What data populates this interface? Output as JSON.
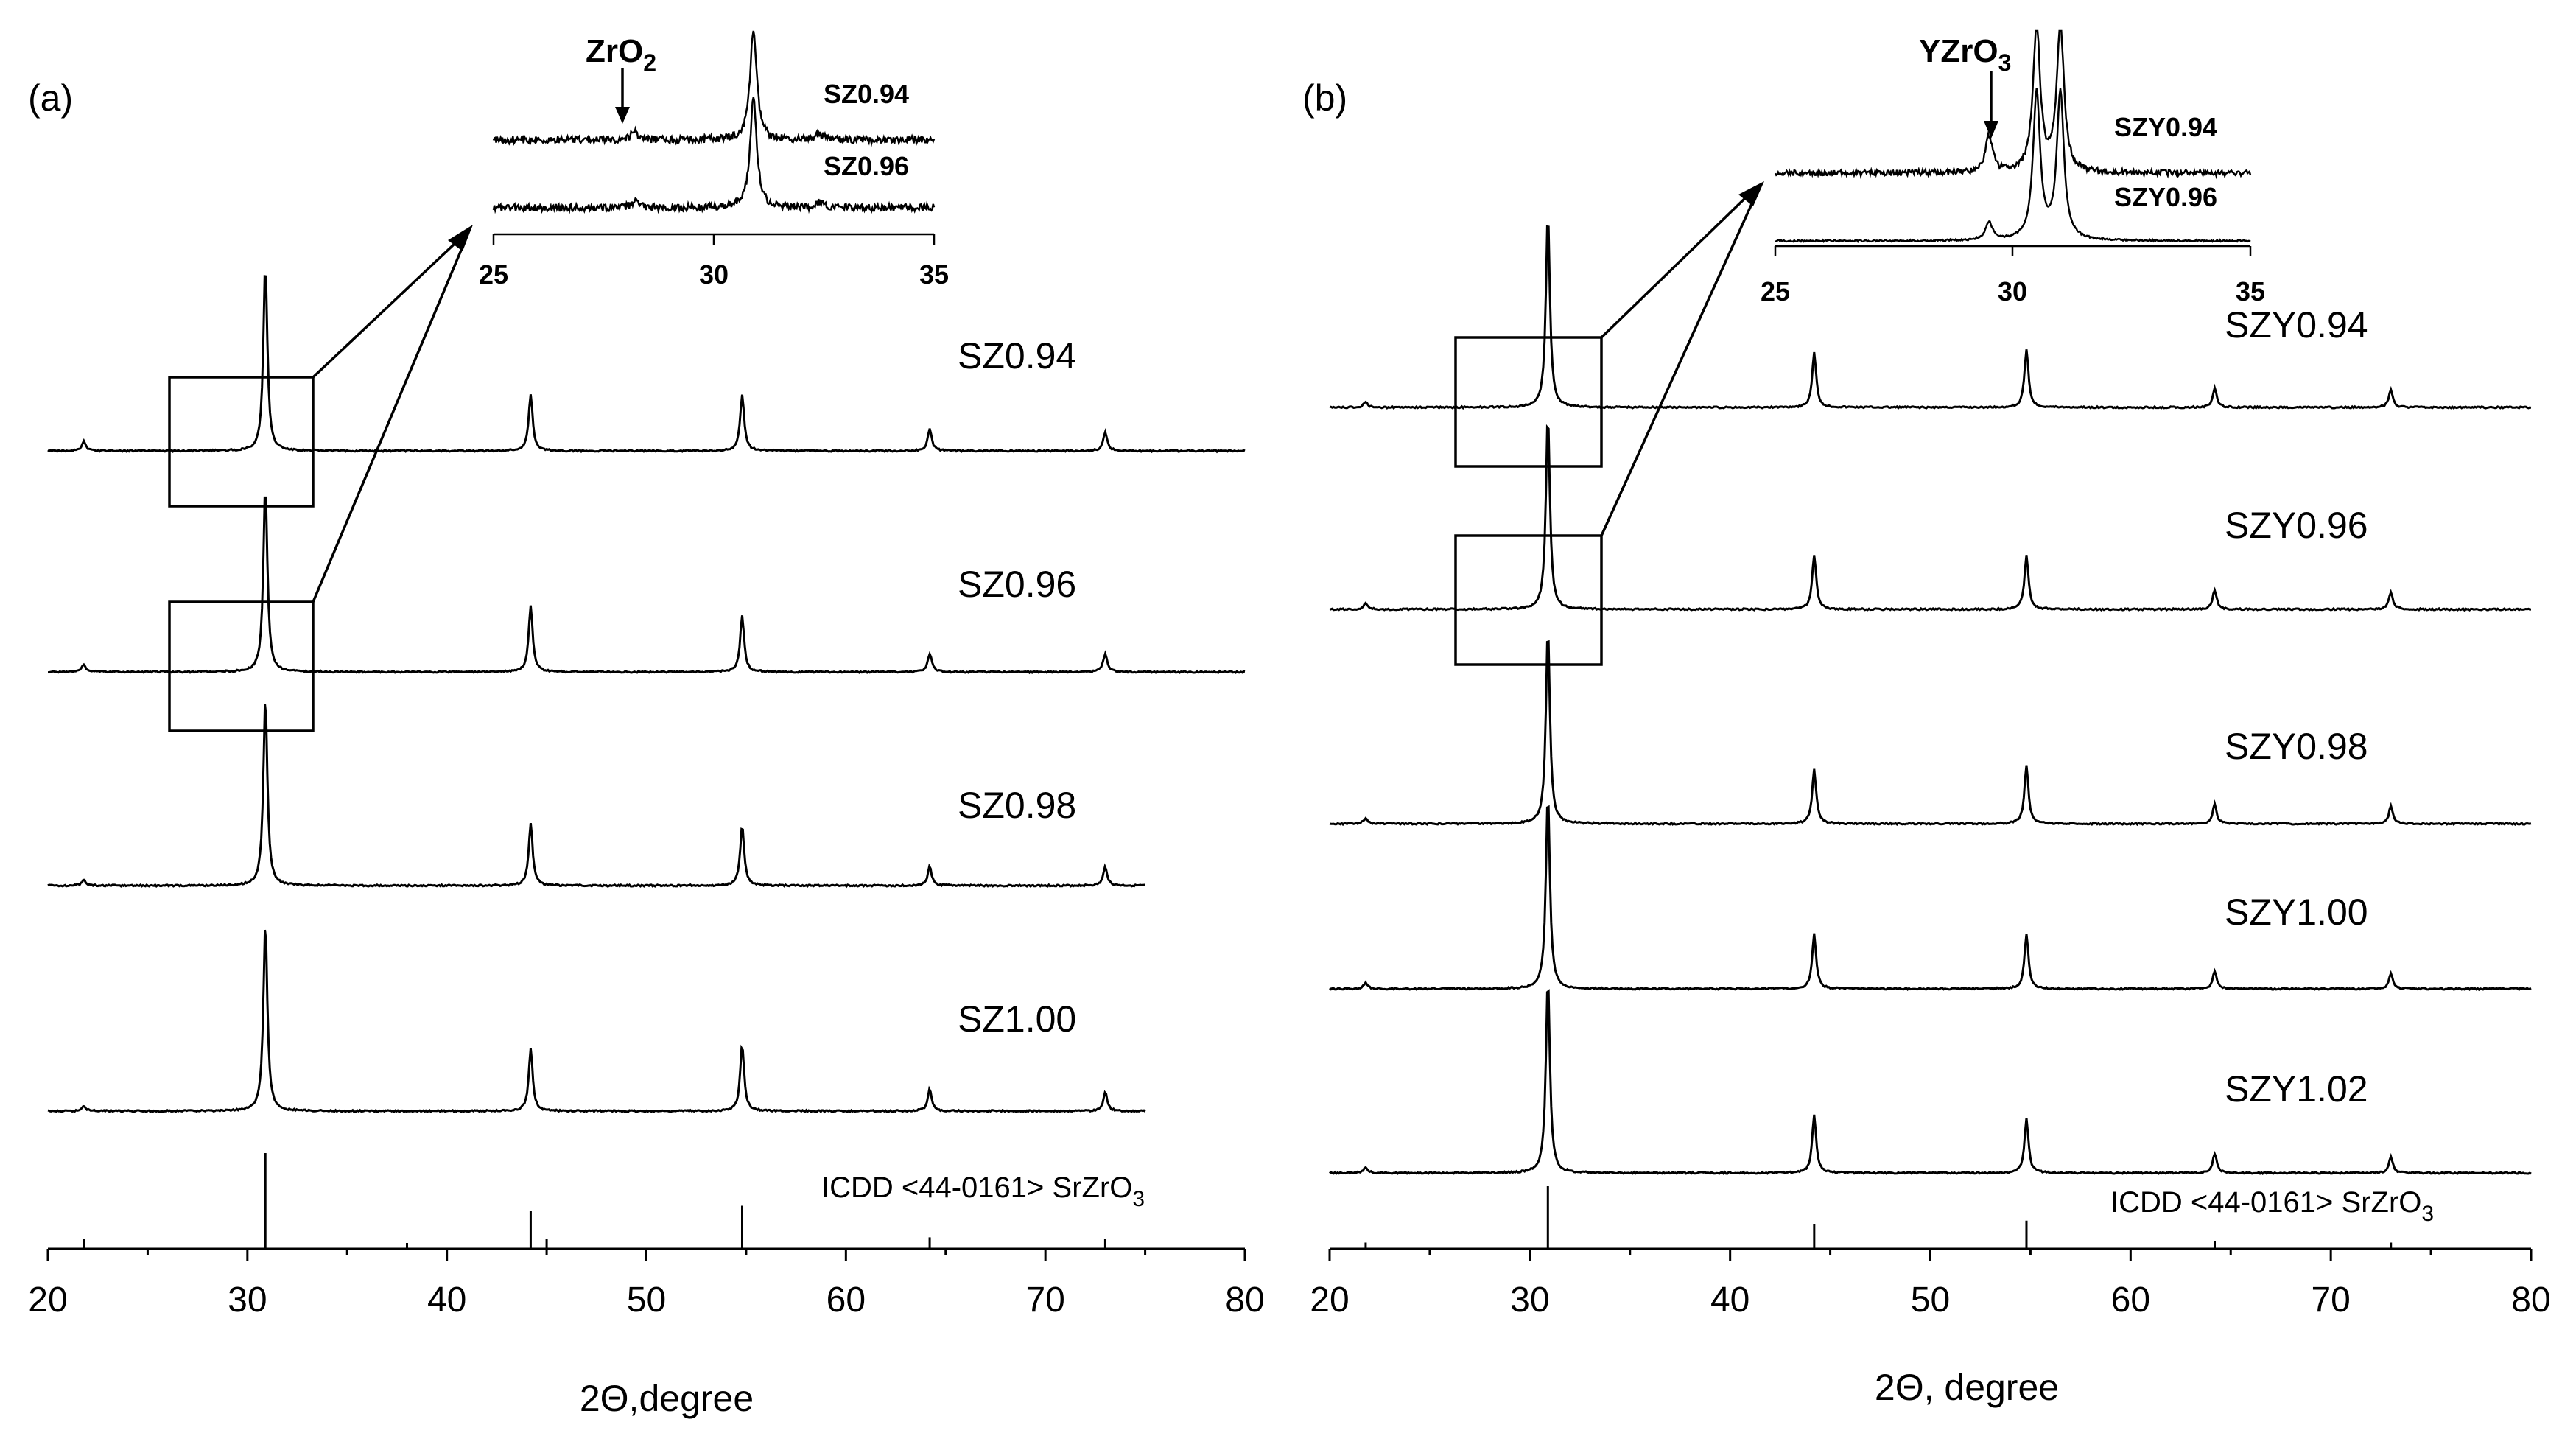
{
  "figure": {
    "panels": [
      {
        "panel_label": "(a)",
        "xlabel": "2Θ,degree",
        "x_ticks": [
          "20",
          "30",
          "40",
          "50",
          "60",
          "70",
          "80"
        ],
        "series_labels": [
          "SZ0.94",
          "SZ0.96",
          "SZ0.98",
          "SZ1.00"
        ],
        "reference_label_main": "ICDD <44-0161> SrZrO",
        "reference_label_sub": "3",
        "inset": {
          "phase_label_main": "ZrO",
          "phase_label_sub": "2",
          "series_labels": [
            "SZ0.94",
            "SZ0.96"
          ],
          "x_ticks": [
            "25",
            "30",
            "35"
          ]
        }
      },
      {
        "panel_label": "(b)",
        "xlabel": "2Θ, degree",
        "x_ticks": [
          "20",
          "30",
          "40",
          "50",
          "60",
          "70",
          "80"
        ],
        "series_labels": [
          "SZY0.94",
          "SZY0.96",
          "SZY0.98",
          "SZY1.00",
          "SZY1.02"
        ],
        "reference_label_main": "ICDD <44-0161> SrZrO",
        "reference_label_sub": "3",
        "inset": {
          "phase_label_main": "YZrO",
          "phase_label_sub": "3",
          "series_labels": [
            "SZY0.94",
            "SZY0.96"
          ],
          "x_ticks": [
            "25",
            "30",
            "35"
          ]
        }
      }
    ]
  },
  "chart_data": [
    {
      "type": "line",
      "title": "(a)",
      "xlabel": "2Θ,degree",
      "ylabel": "",
      "xlim": [
        20,
        80
      ],
      "y_scale": "relative intensity (stacked, offset)",
      "series": [
        {
          "name": "SZ0.94",
          "x_range": [
            20,
            80
          ],
          "peaks": [
            {
              "x": 21.8,
              "h": 0.05
            },
            {
              "x": 30.9,
              "h": 1.0
            },
            {
              "x": 44.2,
              "h": 0.3
            },
            {
              "x": 54.8,
              "h": 0.3
            },
            {
              "x": 64.2,
              "h": 0.12
            },
            {
              "x": 73.0,
              "h": 0.1
            }
          ]
        },
        {
          "name": "SZ0.96",
          "x_range": [
            20,
            80
          ],
          "peaks": [
            {
              "x": 21.8,
              "h": 0.04
            },
            {
              "x": 30.9,
              "h": 1.0
            },
            {
              "x": 44.2,
              "h": 0.35
            },
            {
              "x": 54.8,
              "h": 0.3
            },
            {
              "x": 64.2,
              "h": 0.1
            },
            {
              "x": 73.0,
              "h": 0.1
            }
          ]
        },
        {
          "name": "SZ0.98",
          "x_range": [
            20,
            75
          ],
          "peaks": [
            {
              "x": 21.8,
              "h": 0.03
            },
            {
              "x": 30.9,
              "h": 1.0
            },
            {
              "x": 44.2,
              "h": 0.33
            },
            {
              "x": 54.8,
              "h": 0.32
            },
            {
              "x": 64.2,
              "h": 0.1
            },
            {
              "x": 73.0,
              "h": 0.1
            }
          ]
        },
        {
          "name": "SZ1.00",
          "x_range": [
            20,
            75
          ],
          "peaks": [
            {
              "x": 21.8,
              "h": 0.03
            },
            {
              "x": 30.9,
              "h": 1.0
            },
            {
              "x": 44.2,
              "h": 0.33
            },
            {
              "x": 54.8,
              "h": 0.35
            },
            {
              "x": 64.2,
              "h": 0.12
            },
            {
              "x": 73.0,
              "h": 0.1
            }
          ]
        },
        {
          "name": "ICDD <44-0161> SrZrO3",
          "type": "stick",
          "x": [
            21.8,
            30.9,
            38.0,
            44.2,
            45.0,
            54.8,
            64.2,
            73.0
          ],
          "values": [
            0.1,
            1.0,
            0.04,
            0.4,
            0.1,
            0.45,
            0.12,
            0.1
          ]
        }
      ],
      "inset": {
        "xlim": [
          25,
          35
        ],
        "phase": "ZrO2",
        "phase_x": 28.2,
        "series": [
          {
            "name": "SZ0.94",
            "peaks": [
              {
                "x": 28.2,
                "h": 0.08
              },
              {
                "x": 30.9,
                "h": 1.0
              },
              {
                "x": 32.4,
                "h": 0.06
              }
            ]
          },
          {
            "name": "SZ0.96",
            "peaks": [
              {
                "x": 28.2,
                "h": 0.06
              },
              {
                "x": 30.9,
                "h": 1.0
              },
              {
                "x": 32.4,
                "h": 0.05
              }
            ]
          }
        ]
      }
    },
    {
      "type": "line",
      "title": "(b)",
      "xlabel": "2Θ, degree",
      "ylabel": "",
      "xlim": [
        20,
        80
      ],
      "y_scale": "relative intensity (stacked, offset)",
      "series": [
        {
          "name": "SZY0.94",
          "x_range": [
            20,
            80
          ],
          "peaks": [
            {
              "x": 21.8,
              "h": 0.03
            },
            {
              "x": 30.9,
              "h": 1.0
            },
            {
              "x": 44.2,
              "h": 0.28
            },
            {
              "x": 54.8,
              "h": 0.3
            },
            {
              "x": 64.2,
              "h": 0.1
            },
            {
              "x": 73.0,
              "h": 0.09
            }
          ]
        },
        {
          "name": "SZY0.96",
          "x_range": [
            20,
            80
          ],
          "peaks": [
            {
              "x": 21.8,
              "h": 0.03
            },
            {
              "x": 30.9,
              "h": 1.0
            },
            {
              "x": 44.2,
              "h": 0.28
            },
            {
              "x": 54.8,
              "h": 0.28
            },
            {
              "x": 64.2,
              "h": 0.1
            },
            {
              "x": 73.0,
              "h": 0.09
            }
          ]
        },
        {
          "name": "SZY0.98",
          "x_range": [
            20,
            80
          ],
          "peaks": [
            {
              "x": 21.8,
              "h": 0.03
            },
            {
              "x": 30.9,
              "h": 1.0
            },
            {
              "x": 44.2,
              "h": 0.28
            },
            {
              "x": 54.8,
              "h": 0.3
            },
            {
              "x": 64.2,
              "h": 0.1
            },
            {
              "x": 73.0,
              "h": 0.09
            }
          ]
        },
        {
          "name": "SZY1.00",
          "x_range": [
            20,
            80
          ],
          "peaks": [
            {
              "x": 21.8,
              "h": 0.03
            },
            {
              "x": 30.9,
              "h": 1.0
            },
            {
              "x": 44.2,
              "h": 0.28
            },
            {
              "x": 54.8,
              "h": 0.28
            },
            {
              "x": 64.2,
              "h": 0.09
            },
            {
              "x": 73.0,
              "h": 0.08
            }
          ]
        },
        {
          "name": "SZY1.02",
          "x_range": [
            20,
            80
          ],
          "peaks": [
            {
              "x": 21.8,
              "h": 0.03
            },
            {
              "x": 30.9,
              "h": 1.0
            },
            {
              "x": 44.2,
              "h": 0.3
            },
            {
              "x": 54.8,
              "h": 0.28
            },
            {
              "x": 64.2,
              "h": 0.1
            },
            {
              "x": 73.0,
              "h": 0.08
            }
          ]
        },
        {
          "name": "ICDD <44-0161> SrZrO3",
          "type": "stick",
          "x": [
            21.8,
            30.9,
            44.2,
            54.8,
            64.2,
            73.0
          ],
          "values": [
            0.1,
            1.0,
            0.4,
            0.45,
            0.12,
            0.1
          ]
        }
      ],
      "inset": {
        "xlim": [
          25,
          35
        ],
        "phase": "YZrO3",
        "phase_x": 29.5,
        "series": [
          {
            "name": "SZY0.94",
            "peaks": [
              {
                "x": 29.5,
                "h": 0.25
              },
              {
                "x": 30.5,
                "h": 1.0
              },
              {
                "x": 31.0,
                "h": 1.0
              }
            ]
          },
          {
            "name": "SZY0.96",
            "peaks": [
              {
                "x": 29.5,
                "h": 0.12
              },
              {
                "x": 30.5,
                "h": 1.0
              },
              {
                "x": 31.0,
                "h": 1.0
              }
            ]
          }
        ]
      }
    }
  ]
}
